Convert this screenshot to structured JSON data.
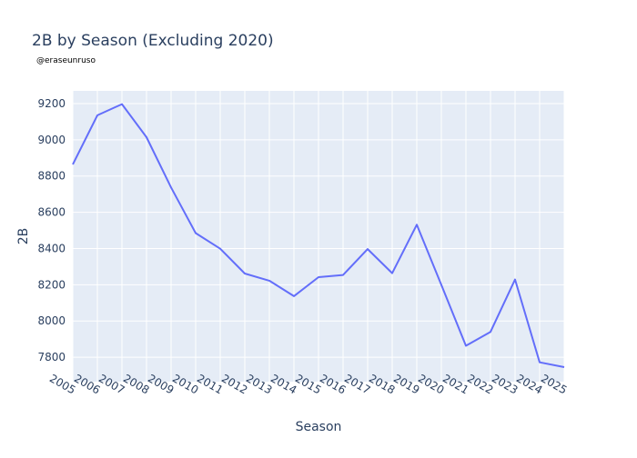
{
  "chart_data": {
    "type": "line",
    "title": "2B by Season (Excluding 2020)",
    "subtitle": "@eraseunruso",
    "xlabel": "Season",
    "ylabel": "2B",
    "x_tick_labels": [
      "2005",
      "2006",
      "2007",
      "2008",
      "2009",
      "2010",
      "2011",
      "2012",
      "2013",
      "2014",
      "2015",
      "2016",
      "2017",
      "2018",
      "2019",
      "2020",
      "2021",
      "2022",
      "2023",
      "2024",
      "2025"
    ],
    "y_ticks": [
      7800,
      8000,
      8200,
      8400,
      8600,
      8800,
      9000,
      9200
    ],
    "ylim": [
      7665,
      9270
    ],
    "grid": true,
    "series": [
      {
        "color": "#636efa",
        "values": [
          8864,
          9135,
          9197,
          9014,
          8737,
          8485,
          8399,
          8262,
          8222,
          8137,
          8242,
          8254,
          8397,
          8264,
          8531,
          8199,
          7863,
          7940,
          8229,
          7772,
          7745
        ]
      }
    ],
    "colors": {
      "plot_bg": "#e5ecf6",
      "grid": "#ffffff",
      "text": "#2a3f5f",
      "line": "#636efa"
    }
  }
}
